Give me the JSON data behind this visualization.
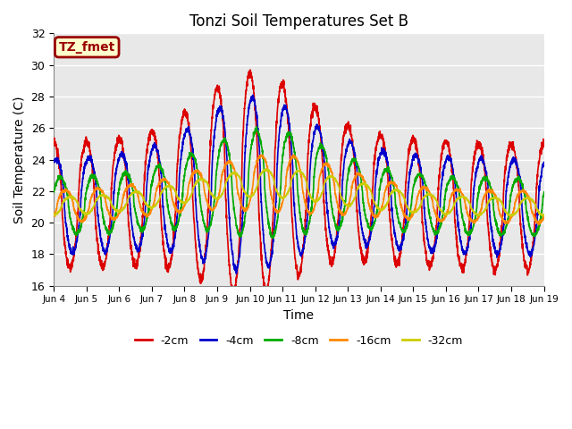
{
  "title": "Tonzi Soil Temperatures Set B",
  "xlabel": "Time",
  "ylabel": "Soil Temperature (C)",
  "ylim": [
    16,
    32
  ],
  "xlim_days": [
    0,
    15
  ],
  "xtick_labels": [
    "Jun 4",
    "Jun 5",
    "Jun 6",
    "Jun 7",
    "Jun 8",
    "Jun 9",
    "Jun 10",
    "Jun 11",
    "Jun 12",
    "Jun 13",
    "Jun 14",
    "Jun 15",
    "Jun 16",
    "Jun 17",
    "Jun 18",
    "Jun 19"
  ],
  "label_box_text": "TZ_fmet",
  "label_box_facecolor": "#ffffcc",
  "label_box_edgecolor": "#990000",
  "label_text_color": "#990000",
  "background_color": "#e8e8e8",
  "fig_background": "#ffffff",
  "series": [
    {
      "label": "-2cm",
      "color": "#dd0000",
      "linewidth": 1.2
    },
    {
      "label": "-4cm",
      "color": "#0000cc",
      "linewidth": 1.2
    },
    {
      "label": "-8cm",
      "color": "#00aa00",
      "linewidth": 1.2
    },
    {
      "label": "-16cm",
      "color": "#ff8800",
      "linewidth": 1.2
    },
    {
      "label": "-32cm",
      "color": "#cccc00",
      "linewidth": 1.2
    }
  ],
  "legend_colors": [
    "#dd0000",
    "#0000cc",
    "#00aa00",
    "#ff8800",
    "#cccc00"
  ],
  "legend_labels": [
    "-2cm",
    "-4cm",
    "-8cm",
    "-16cm",
    "-32cm"
  ]
}
